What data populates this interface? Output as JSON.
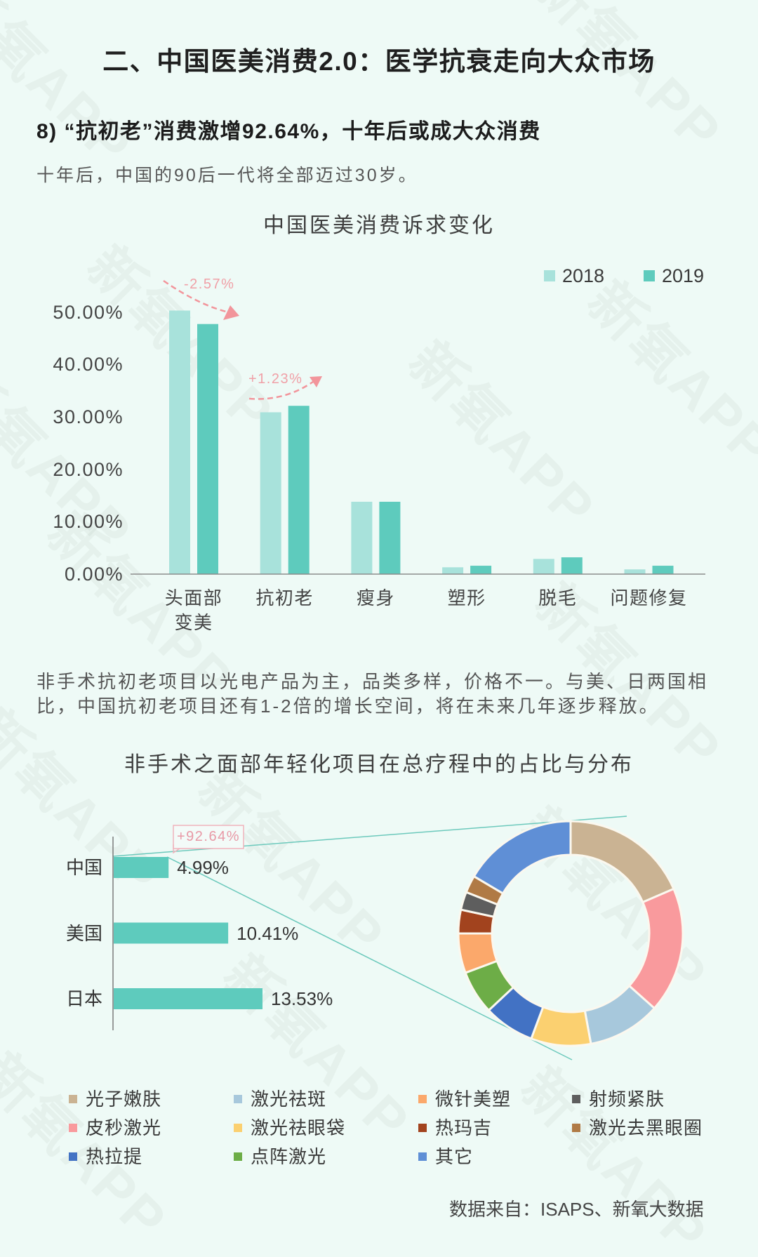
{
  "header": {
    "title": "二、中国医美消费2.0：医学抗衰走向大众市场",
    "subtitle": "8) “抗初老”消费激增92.64%，十年后或成大众消费",
    "intro": "十年后，中国的90后一代将全部迈过30岁。"
  },
  "body": {
    "paragraph": "非手术抗初老项目以光电产品为主，品类多样，价格不一。与美、日两国相比，中国抗初老项目还有1-2倍的增长空间，将在未来几年逐步释放。"
  },
  "footer": {
    "source": "数据来自：ISAPS、新氧大数据"
  },
  "watermark": {
    "text": "新氧APP"
  },
  "colors": {
    "background": "#eefaf6",
    "accent": "#5ecbbd",
    "accent_light": "#a8e2db",
    "annotation": "#f0959c",
    "connector": "#6cc9bc"
  },
  "chart_data": [
    {
      "type": "bar",
      "title": "中国医美消费诉求变化",
      "categories": [
        "头面部\n变美",
        "抗初老",
        "瘦身",
        "塑形",
        "脱毛",
        "问题修复"
      ],
      "series": [
        {
          "name": "2018",
          "color": "#a8e2db",
          "values": [
            50.27,
            30.87,
            13.8,
            1.3,
            2.9,
            0.9
          ]
        },
        {
          "name": "2019",
          "color": "#5ecbbd",
          "values": [
            47.7,
            32.1,
            13.8,
            1.6,
            3.2,
            1.6
          ]
        }
      ],
      "yticks": [
        "0.00%",
        "10.00%",
        "20.00%",
        "30.00%",
        "40.00%",
        "50.00%"
      ],
      "ylim": [
        0,
        50
      ],
      "xlabel": "",
      "ylabel": "",
      "grid": false,
      "legend_position": "top-right",
      "annotations": [
        {
          "category": "头面部变美",
          "text": "-2.57%"
        },
        {
          "category": "抗初老",
          "text": "+1.23%"
        }
      ]
    },
    {
      "type": "bar",
      "orientation": "horizontal",
      "title": "非手术之面部年轻化项目在总疗程中的占比与分布",
      "categories": [
        "中国",
        "美国",
        "日本"
      ],
      "values": [
        4.99,
        10.41,
        13.53
      ],
      "value_labels": [
        "4.99%",
        "10.41%",
        "13.53%"
      ],
      "color": "#5ecbbd",
      "annotation": {
        "target": "中国",
        "text": "+92.64%"
      },
      "grid": false
    },
    {
      "type": "pie",
      "style": "donut",
      "title": "非手术之面部年轻化项目分布",
      "categories": [
        "光子嫩肤",
        "皮秒激光",
        "激光祛斑",
        "激光祛眼袋",
        "热拉提",
        "点阵激光",
        "微针美塑",
        "热玛吉",
        "射频紧肤",
        "激光去黑眼圈",
        "其它"
      ],
      "values": [
        18.5,
        18.1,
        10.5,
        8.6,
        7.3,
        6.3,
        5.7,
        3.4,
        2.6,
        2.5,
        16.5
      ],
      "colors": [
        "#cab393",
        "#f99a9d",
        "#a7c8dc",
        "#fbd070",
        "#4272c4",
        "#6dad47",
        "#fba86b",
        "#a2431e",
        "#5e5e5e",
        "#b07a45",
        "#5f8fd6"
      ],
      "legend": [
        "光子嫩肤",
        "激光祛斑",
        "微针美塑",
        "射频紧肤",
        "皮秒激光",
        "激光祛眼袋",
        "热玛吉",
        "激光去黑眼圈",
        "热拉提",
        "点阵激光",
        "其它"
      ],
      "legend_position": "bottom"
    }
  ]
}
